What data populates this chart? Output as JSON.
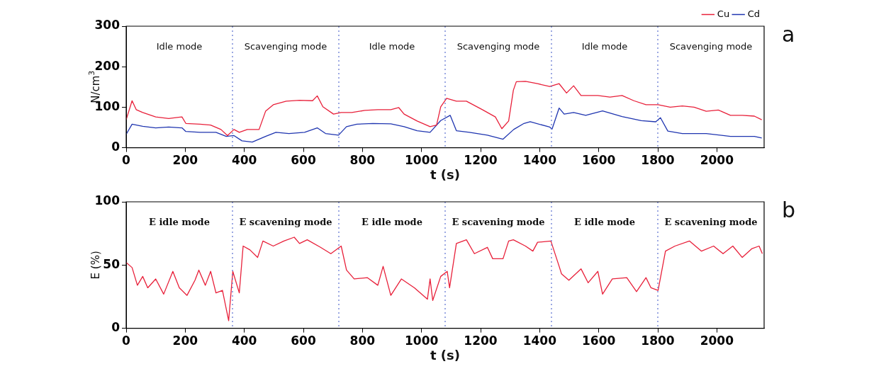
{
  "chart_data": [
    {
      "type": "line",
      "xlabel": "t (s)",
      "ylabel": "N/cm$^{3}$",
      "xlim": [
        0,
        2160
      ],
      "xticks": [
        0,
        200,
        400,
        600,
        800,
        1000,
        1200,
        1400,
        1600,
        1800,
        2000
      ],
      "ylim": [
        0,
        300
      ],
      "yticks": [
        0,
        100,
        200,
        300
      ],
      "grid": false,
      "legend": "top right",
      "line_style": "solid",
      "ref_lines": [
        {
          "axis": "x",
          "value": 360,
          "color": "#5a6fd0",
          "line_style": "dotted"
        },
        {
          "axis": "x",
          "value": 720,
          "color": "#5a6fd0",
          "line_style": "dotted"
        },
        {
          "axis": "x",
          "value": 1080,
          "color": "#5a6fd0",
          "line_style": "dotted"
        },
        {
          "axis": "x",
          "value": 1440,
          "color": "#5a6fd0",
          "line_style": "dotted"
        },
        {
          "axis": "x",
          "value": 1800,
          "color": "#5a6fd0",
          "line_style": "dotted"
        }
      ],
      "annotations": [
        "Idle mode",
        "Scavenging mode",
        "Idle mode",
        "Scavenging mode",
        "Idle mode",
        "Scavenging mode",
        "a"
      ],
      "series": [
        {
          "name": "Cu",
          "color": "#e8203a",
          "x": [
            0,
            20,
            34,
            56,
            100,
            144,
            189,
            202,
            250,
            286,
            321,
            343,
            365,
            383,
            410,
            450,
            472,
            498,
            542,
            587,
            631,
            647,
            666,
            702,
            728,
            764,
            808,
            852,
            896,
            923,
            941,
            985,
            1029,
            1051,
            1065,
            1085,
            1118,
            1152,
            1206,
            1250,
            1272,
            1295,
            1311,
            1321,
            1352,
            1393,
            1434,
            1466,
            1491,
            1515,
            1540,
            1597,
            1638,
            1679,
            1719,
            1760,
            1801,
            1842,
            1883,
            1923,
            1964,
            2005,
            2046,
            2086,
            2127,
            2152
          ],
          "values": [
            69,
            116,
            94,
            87,
            76,
            72,
            76,
            60,
            58,
            56,
            45,
            30,
            45,
            38,
            45,
            45,
            90,
            106,
            115,
            117,
            116,
            128,
            101,
            83,
            87,
            87,
            92,
            94,
            94,
            99,
            83,
            66,
            52,
            56,
            101,
            122,
            115,
            115,
            94,
            76,
            47,
            66,
            142,
            163,
            164,
            158,
            151,
            158,
            135,
            153,
            129,
            129,
            125,
            129,
            116,
            106,
            106,
            100,
            103,
            100,
            90,
            93,
            80,
            80,
            78,
            69
          ]
        },
        {
          "name": "Cd",
          "color": "#1f35b0",
          "x": [
            0,
            20,
            56,
            100,
            144,
            189,
            202,
            250,
            304,
            339,
            365,
            392,
            427,
            472,
            507,
            551,
            604,
            647,
            675,
            719,
            746,
            781,
            835,
            896,
            941,
            985,
            1029,
            1065,
            1097,
            1118,
            1162,
            1223,
            1276,
            1312,
            1347,
            1368,
            1434,
            1442,
            1466,
            1483,
            1515,
            1556,
            1613,
            1679,
            1744,
            1793,
            1809,
            1834,
            1883,
            1964,
            2046,
            2127,
            2152
          ],
          "values": [
            33,
            58,
            53,
            49,
            51,
            49,
            40,
            38,
            38,
            28,
            30,
            17,
            14,
            28,
            38,
            35,
            38,
            49,
            35,
            31,
            52,
            58,
            60,
            59,
            52,
            42,
            38,
            67,
            80,
            42,
            38,
            31,
            21,
            45,
            60,
            64,
            51,
            46,
            98,
            83,
            87,
            80,
            91,
            77,
            67,
            64,
            74,
            41,
            35,
            35,
            28,
            28,
            24
          ]
        }
      ]
    },
    {
      "type": "line",
      "xlabel": "t (s)",
      "ylabel": "E (%)",
      "xlim": [
        0,
        2160
      ],
      "xticks": [
        0,
        200,
        400,
        600,
        800,
        1000,
        1200,
        1400,
        1600,
        1800,
        2000
      ],
      "ylim": [
        0,
        100
      ],
      "yticks": [
        0,
        50,
        100
      ],
      "grid": false,
      "line_style": "solid",
      "ref_lines": [
        {
          "axis": "x",
          "value": 360,
          "color": "#5a6fd0",
          "line_style": "dotted"
        },
        {
          "axis": "x",
          "value": 720,
          "color": "#5a6fd0",
          "line_style": "dotted"
        },
        {
          "axis": "x",
          "value": 1080,
          "color": "#5a6fd0",
          "line_style": "dotted"
        },
        {
          "axis": "x",
          "value": 1440,
          "color": "#5a6fd0",
          "line_style": "dotted"
        },
        {
          "axis": "x",
          "value": 1800,
          "color": "#5a6fd0",
          "line_style": "dotted"
        }
      ],
      "annotations": [
        "E idle mode",
        "E scavening mode",
        "E idle mode",
        "E scavening mode",
        "E idle mode",
        "E scavening mode",
        "b"
      ],
      "series": [
        {
          "color": "#e8203a",
          "x": [
            0,
            20,
            38,
            56,
            73,
            100,
            127,
            158,
            180,
            206,
            233,
            246,
            268,
            286,
            304,
            326,
            347,
            361,
            383,
            396,
            419,
            445,
            463,
            498,
            534,
            569,
            587,
            613,
            658,
            693,
            728,
            746,
            772,
            817,
            852,
            870,
            896,
            932,
            976,
            1020,
            1029,
            1038,
            1065,
            1087,
            1095,
            1118,
            1152,
            1179,
            1223,
            1241,
            1276,
            1295,
            1311,
            1352,
            1377,
            1393,
            1438,
            1466,
            1474,
            1499,
            1540,
            1564,
            1597,
            1613,
            1646,
            1695,
            1728,
            1760,
            1777,
            1801,
            1826,
            1858,
            1907,
            1948,
            1989,
            2021,
            2054,
            2086,
            2119,
            2143,
            2154
          ],
          "values": [
            52,
            48,
            34,
            41,
            32,
            39,
            27,
            45,
            32,
            26,
            38,
            46,
            34,
            45,
            28,
            30,
            6,
            45,
            28,
            65,
            62,
            56,
            69,
            65,
            69,
            72,
            67,
            70,
            64,
            59,
            65,
            46,
            39,
            40,
            34,
            49,
            26,
            39,
            32,
            23,
            39,
            22,
            41,
            45,
            32,
            67,
            70,
            59,
            64,
            55,
            55,
            69,
            70,
            65,
            61,
            68,
            69,
            49,
            43,
            38,
            47,
            36,
            45,
            27,
            39,
            40,
            29,
            40,
            32,
            30,
            61,
            65,
            69,
            61,
            65,
            59,
            65,
            56,
            63,
            65,
            59
          ]
        }
      ]
    }
  ]
}
